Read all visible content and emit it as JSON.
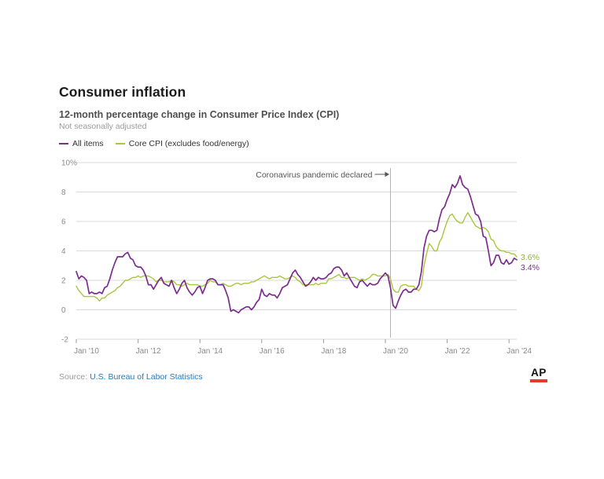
{
  "header": {
    "title": "Consumer inflation",
    "subtitle": "12-month percentage change in Consumer Price Index (CPI)",
    "note": "Not seasonally adjusted"
  },
  "legend": {
    "items": [
      {
        "label": "All items",
        "color": "#7b2d8e"
      },
      {
        "label": "Core CPI (excludes food/energy)",
        "color": "#a8c63e"
      }
    ]
  },
  "annotation": {
    "text": "Coronavirus pandemic declared",
    "event_month": "2020-03"
  },
  "end_labels": [
    {
      "text": "3.6%",
      "value": 3.6,
      "color": "#94b32c"
    },
    {
      "text": "3.4%",
      "value": 3.4,
      "color": "#7b2d8e"
    }
  ],
  "footer": {
    "source_prefix": "Source:",
    "source_link": "U.S. Bureau of Labor Statistics",
    "logo": "AP"
  },
  "chart_data": {
    "type": "line",
    "title": "Consumer inflation",
    "subtitle": "12-month percentage change in Consumer Price Index (CPI)",
    "x_start": "2010-01",
    "x_end": "2024-04",
    "x_frequency": "monthly",
    "ylim": [
      -2,
      10
    ],
    "yticks": [
      10,
      8,
      6,
      4,
      2,
      0,
      -2
    ],
    "ytick_labels": [
      "10%",
      "8",
      "6",
      "4",
      "2",
      "0",
      "-2"
    ],
    "xtick_labels": [
      "Jan '10",
      "Jan '12",
      "Jan '14",
      "Jan '16",
      "Jan '18",
      "Jan '20",
      "Jan '22",
      "Jan '24"
    ],
    "xtick_month_indices": [
      0,
      24,
      48,
      72,
      96,
      120,
      144,
      168
    ],
    "annotation_month_index": 122,
    "grid": "horizontal",
    "legend_position": "top-left",
    "series": [
      {
        "name": "All items",
        "color": "#7b2d8e",
        "values": [
          2.6,
          2.1,
          2.3,
          2.2,
          2.0,
          1.1,
          1.2,
          1.1,
          1.1,
          1.2,
          1.1,
          1.5,
          1.6,
          2.1,
          2.7,
          3.2,
          3.6,
          3.6,
          3.6,
          3.8,
          3.9,
          3.5,
          3.4,
          3.0,
          2.9,
          2.9,
          2.7,
          2.3,
          1.7,
          1.7,
          1.4,
          1.7,
          2.0,
          2.2,
          1.8,
          1.7,
          1.6,
          2.0,
          1.5,
          1.1,
          1.4,
          1.8,
          2.0,
          1.5,
          1.2,
          1.0,
          1.2,
          1.5,
          1.6,
          1.1,
          1.5,
          2.0,
          2.1,
          2.1,
          2.0,
          1.7,
          1.7,
          1.7,
          1.3,
          0.8,
          -0.1,
          0.0,
          -0.1,
          -0.2,
          0.0,
          0.1,
          0.2,
          0.2,
          0.0,
          0.2,
          0.5,
          0.7,
          1.4,
          1.0,
          0.9,
          1.1,
          1.0,
          1.0,
          0.8,
          1.1,
          1.5,
          1.6,
          1.7,
          2.1,
          2.5,
          2.7,
          2.4,
          2.2,
          1.9,
          1.6,
          1.7,
          1.9,
          2.2,
          2.0,
          2.2,
          2.1,
          2.1,
          2.2,
          2.4,
          2.5,
          2.8,
          2.9,
          2.9,
          2.7,
          2.3,
          2.5,
          2.2,
          1.9,
          1.6,
          1.5,
          1.9,
          2.0,
          1.8,
          1.6,
          1.8,
          1.7,
          1.7,
          1.8,
          2.1,
          2.3,
          2.5,
          2.3,
          1.5,
          0.3,
          0.1,
          0.6,
          1.0,
          1.3,
          1.4,
          1.2,
          1.2,
          1.4,
          1.4,
          1.7,
          2.6,
          4.2,
          5.0,
          5.4,
          5.4,
          5.3,
          5.4,
          6.2,
          6.8,
          7.0,
          7.5,
          7.9,
          8.5,
          8.3,
          8.6,
          9.1,
          8.5,
          8.3,
          8.2,
          7.7,
          7.1,
          6.5,
          6.4,
          6.0,
          5.0,
          4.9,
          4.0,
          3.0,
          3.2,
          3.7,
          3.7,
          3.2,
          3.1,
          3.4,
          3.1,
          3.2,
          3.5,
          3.4
        ]
      },
      {
        "name": "Core CPI (excludes food/energy)",
        "color": "#a8c63e",
        "values": [
          1.6,
          1.3,
          1.1,
          0.9,
          0.9,
          0.9,
          0.9,
          0.9,
          0.8,
          0.6,
          0.8,
          0.8,
          1.0,
          1.1,
          1.2,
          1.3,
          1.5,
          1.6,
          1.8,
          2.0,
          2.0,
          2.1,
          2.2,
          2.2,
          2.3,
          2.2,
          2.3,
          2.3,
          2.3,
          2.2,
          2.1,
          1.9,
          2.0,
          2.0,
          1.9,
          1.9,
          1.9,
          2.0,
          1.9,
          1.7,
          1.7,
          1.6,
          1.7,
          1.8,
          1.7,
          1.7,
          1.7,
          1.7,
          1.6,
          1.6,
          1.7,
          1.8,
          2.0,
          1.9,
          1.9,
          1.7,
          1.7,
          1.8,
          1.7,
          1.6,
          1.6,
          1.7,
          1.8,
          1.8,
          1.7,
          1.8,
          1.8,
          1.8,
          1.9,
          1.9,
          2.0,
          2.1,
          2.2,
          2.3,
          2.2,
          2.1,
          2.2,
          2.2,
          2.2,
          2.3,
          2.2,
          2.1,
          2.1,
          2.2,
          2.3,
          2.2,
          2.0,
          1.9,
          1.7,
          1.7,
          1.7,
          1.7,
          1.7,
          1.8,
          1.7,
          1.8,
          1.8,
          1.8,
          2.1,
          2.1,
          2.2,
          2.3,
          2.4,
          2.2,
          2.2,
          2.1,
          2.2,
          2.2,
          2.2,
          2.1,
          2.0,
          2.1,
          2.0,
          2.1,
          2.2,
          2.4,
          2.4,
          2.3,
          2.3,
          2.3,
          2.3,
          2.4,
          2.1,
          1.4,
          1.2,
          1.2,
          1.6,
          1.7,
          1.7,
          1.6,
          1.6,
          1.6,
          1.4,
          1.3,
          1.6,
          3.0,
          3.8,
          4.5,
          4.3,
          4.0,
          4.0,
          4.6,
          4.9,
          5.5,
          6.0,
          6.4,
          6.5,
          6.2,
          6.0,
          5.9,
          5.9,
          6.3,
          6.6,
          6.3,
          6.0,
          5.7,
          5.6,
          5.5,
          5.6,
          5.5,
          5.3,
          4.8,
          4.7,
          4.3,
          4.1,
          4.0,
          4.0,
          3.9,
          3.9,
          3.8,
          3.8,
          3.6
        ]
      }
    ]
  }
}
